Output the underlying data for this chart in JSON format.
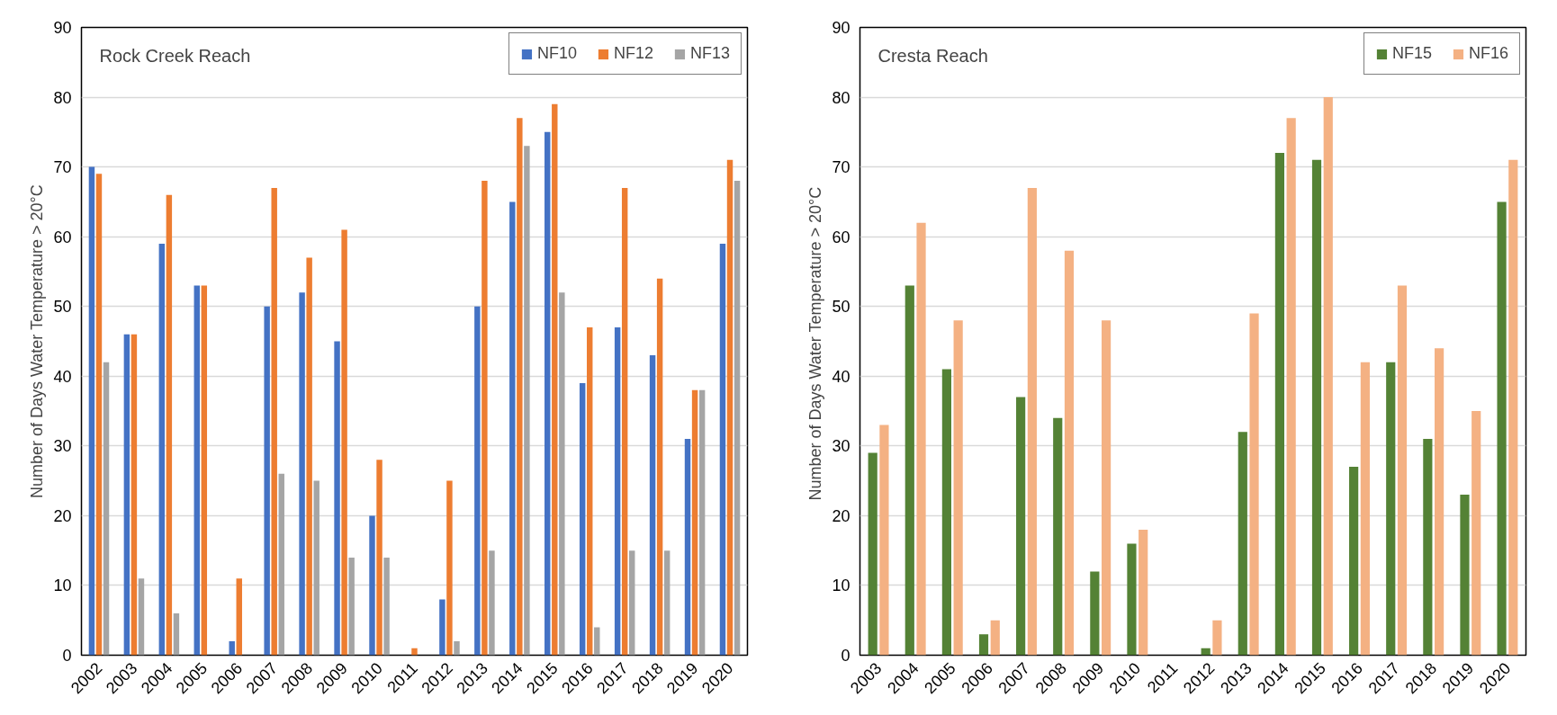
{
  "chart_data": [
    {
      "type": "bar",
      "title": "Rock Creek Reach",
      "ylabel": "Number of Days Water Temperature > 20°C",
      "categories": [
        "2002",
        "2003",
        "2004",
        "2005",
        "2006",
        "2007",
        "2008",
        "2009",
        "2010",
        "2011",
        "2012",
        "2013",
        "2014",
        "2015",
        "2016",
        "2017",
        "2018",
        "2019",
        "2020"
      ],
      "series": [
        {
          "name": "NF10",
          "color": "#4472c4",
          "values": [
            70,
            46,
            59,
            53,
            2,
            50,
            52,
            45,
            20,
            null,
            8,
            50,
            65,
            75,
            39,
            47,
            43,
            31,
            59
          ]
        },
        {
          "name": "NF12",
          "color": "#ed7d31",
          "values": [
            69,
            46,
            66,
            53,
            11,
            67,
            57,
            61,
            28,
            1,
            25,
            68,
            77,
            79,
            47,
            67,
            54,
            38,
            71
          ]
        },
        {
          "name": "NF13",
          "color": "#a5a5a5",
          "values": [
            42,
            11,
            6,
            null,
            null,
            26,
            25,
            14,
            14,
            null,
            2,
            15,
            73,
            52,
            4,
            15,
            15,
            38,
            68
          ]
        }
      ],
      "ylim": [
        0,
        90
      ],
      "yticks": [
        0,
        10,
        20,
        30,
        40,
        50,
        60,
        70,
        80,
        90
      ],
      "grid": "y",
      "legend": "top right"
    },
    {
      "type": "bar",
      "title": "Cresta Reach",
      "ylabel": "Number of Days  Water Temperature > 20°C",
      "categories": [
        "2003",
        "2004",
        "2005",
        "2006",
        "2007",
        "2008",
        "2009",
        "2010",
        "2011",
        "2012",
        "2013",
        "2014",
        "2015",
        "2016",
        "2017",
        "2018",
        "2019",
        "2020"
      ],
      "series": [
        {
          "name": "NF15",
          "color": "#548235",
          "values": [
            29,
            53,
            41,
            3,
            37,
            34,
            12,
            16,
            null,
            1,
            32,
            72,
            71,
            27,
            42,
            31,
            23,
            65
          ]
        },
        {
          "name": "NF16",
          "color": "#f4b183",
          "values": [
            33,
            62,
            48,
            5,
            67,
            58,
            48,
            18,
            null,
            5,
            49,
            77,
            80,
            42,
            53,
            44,
            35,
            71
          ]
        }
      ],
      "ylim": [
        0,
        90
      ],
      "yticks": [
        0,
        10,
        20,
        30,
        40,
        50,
        60,
        70,
        80,
        90
      ],
      "grid": "y",
      "legend": "top right"
    }
  ]
}
